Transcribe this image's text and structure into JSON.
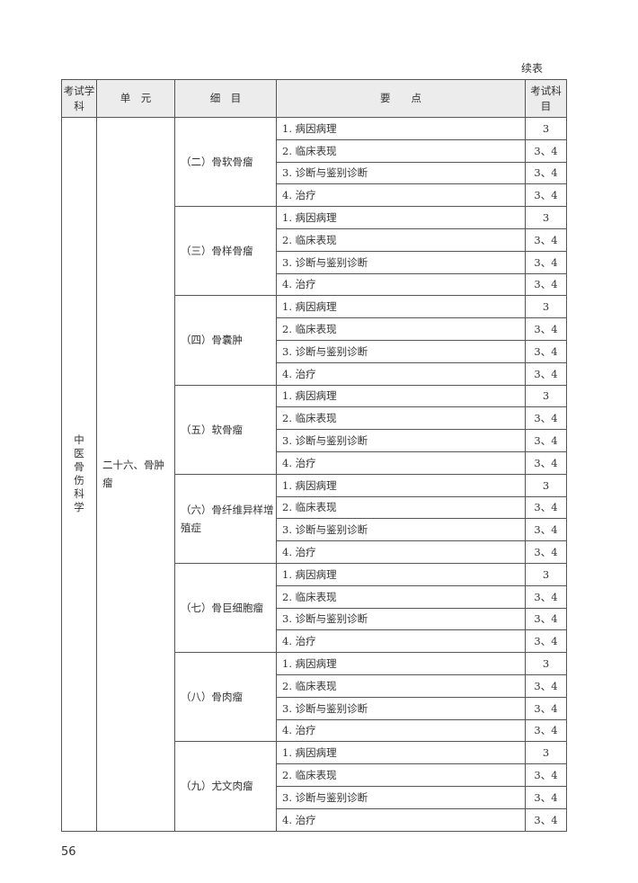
{
  "continued_label": "续表",
  "headers": {
    "subject": "考试学科",
    "unit": "单　元",
    "item": "细　目",
    "points": "要　　点",
    "exam": "考试科目"
  },
  "subject": "中医骨伤科学",
  "unit": "二十六、骨肿瘤",
  "groups": [
    {
      "item": "（二）骨软骨瘤",
      "points": [
        [
          "1. 病因病理",
          "3"
        ],
        [
          "2. 临床表现",
          "3、4"
        ],
        [
          "3. 诊断与鉴别诊断",
          "3、4"
        ],
        [
          "4. 治疗",
          "3、4"
        ]
      ]
    },
    {
      "item": "（三）骨样骨瘤",
      "points": [
        [
          "1. 病因病理",
          "3"
        ],
        [
          "2. 临床表现",
          "3、4"
        ],
        [
          "3. 诊断与鉴别诊断",
          "3、4"
        ],
        [
          "4. 治疗",
          "3、4"
        ]
      ]
    },
    {
      "item": "（四）骨囊肿",
      "points": [
        [
          "1. 病因病理",
          "3"
        ],
        [
          "2. 临床表现",
          "3、4"
        ],
        [
          "3. 诊断与鉴别诊断",
          "3、4"
        ],
        [
          "4. 治疗",
          "3、4"
        ]
      ]
    },
    {
      "item": "（五）软骨瘤",
      "points": [
        [
          "1. 病因病理",
          "3"
        ],
        [
          "2. 临床表现",
          "3、4"
        ],
        [
          "3. 诊断与鉴别诊断",
          "3、4"
        ],
        [
          "4. 治疗",
          "3、4"
        ]
      ]
    },
    {
      "item": "（六）骨纤维异样增殖症",
      "points": [
        [
          "1. 病因病理",
          "3"
        ],
        [
          "2. 临床表现",
          "3、4"
        ],
        [
          "3. 诊断与鉴别诊断",
          "3、4"
        ],
        [
          "4. 治疗",
          "3、4"
        ]
      ]
    },
    {
      "item": "（七）骨巨细胞瘤",
      "points": [
        [
          "1. 病因病理",
          "3"
        ],
        [
          "2. 临床表现",
          "3、4"
        ],
        [
          "3. 诊断与鉴别诊断",
          "3、4"
        ],
        [
          "4. 治疗",
          "3、4"
        ]
      ]
    },
    {
      "item": "（八）骨肉瘤",
      "points": [
        [
          "1. 病因病理",
          "3"
        ],
        [
          "2. 临床表现",
          "3、4"
        ],
        [
          "3. 诊断与鉴别诊断",
          "3、4"
        ],
        [
          "4. 治疗",
          "3、4"
        ]
      ]
    },
    {
      "item": "（九）尤文肉瘤",
      "points": [
        [
          "1.  病因病理",
          "3"
        ],
        [
          "2. 临床表现",
          "3、4"
        ],
        [
          "3. 诊断与鉴别诊断",
          "3、4"
        ],
        [
          "4. 治疗",
          "3、4"
        ]
      ]
    }
  ],
  "page_number": "56"
}
